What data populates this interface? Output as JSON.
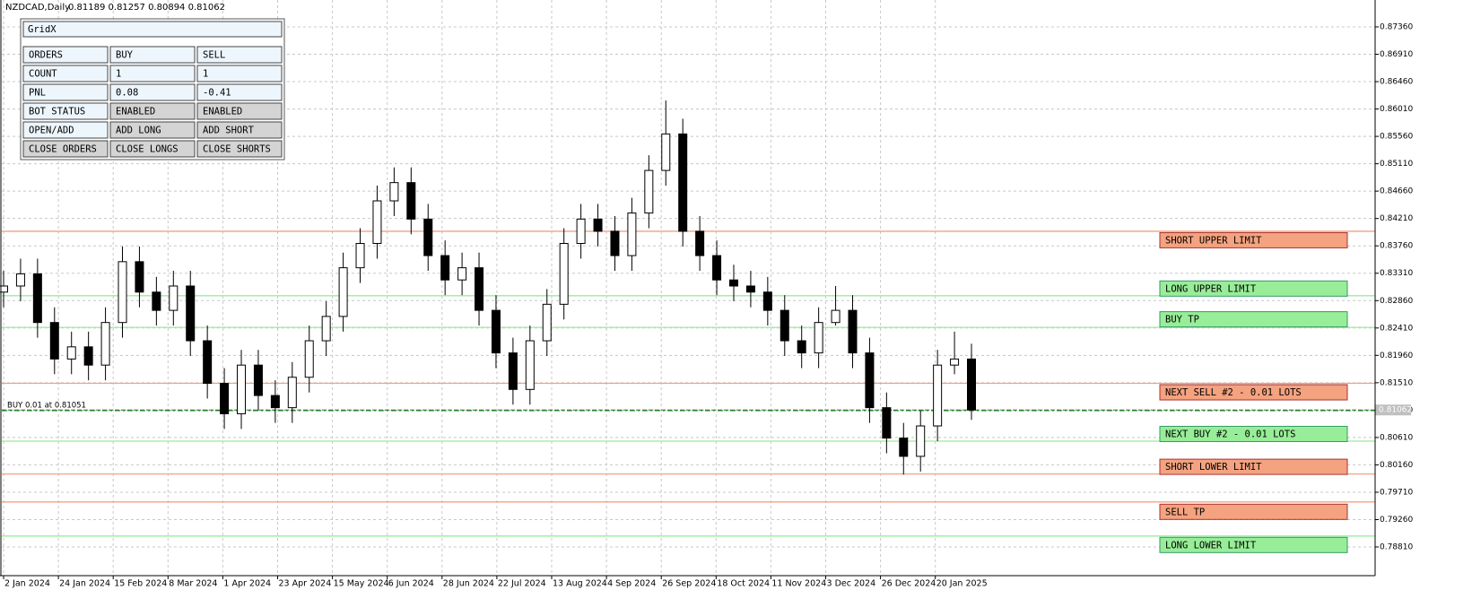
{
  "header": {
    "symbol": "NZDCAD,Daily",
    "ohlc": "0.81189 0.81257 0.80894 0.81062"
  },
  "panel": {
    "title": "GridX",
    "rows": [
      [
        "ORDERS",
        "BUY",
        "SELL"
      ],
      [
        "COUNT",
        "1",
        "1"
      ],
      [
        "PNL",
        "0.08",
        "-0.41"
      ],
      [
        "BOT STATUS",
        "ENABLED",
        "ENABLED"
      ],
      [
        "OPEN/ADD",
        "ADD LONG",
        "ADD SHORT"
      ],
      [
        "CLOSE ORDERS",
        "CLOSE LONGS",
        "CLOSE SHORTS"
      ]
    ]
  },
  "chart_data": {
    "type": "candlestick",
    "x_labels": [
      "2 Jan 2024",
      "24 Jan 2024",
      "15 Feb 2024",
      "8 Mar 2024",
      "1 Apr 2024",
      "23 Apr 2024",
      "15 May 2024",
      "6 Jun 2024",
      "28 Jun 2024",
      "22 Jul 2024",
      "13 Aug 2024",
      "4 Sep 2024",
      "26 Sep 2024",
      "18 Oct 2024",
      "11 Nov 2024",
      "3 Dec 2024",
      "26 Dec 2024",
      "20 Jan 2025"
    ],
    "open": [
      0.83,
      0.831,
      0.833,
      0.825,
      0.819,
      0.821,
      0.818,
      0.825,
      0.835,
      0.83,
      0.827,
      0.831,
      0.822,
      0.815,
      0.81,
      0.818,
      0.813,
      0.811,
      0.816,
      0.822,
      0.826,
      0.834,
      0.838,
      0.845,
      0.848,
      0.842,
      0.836,
      0.832,
      0.834,
      0.827,
      0.82,
      0.814,
      0.822,
      0.828,
      0.838,
      0.842,
      0.84,
      0.836,
      0.843,
      0.85,
      0.856,
      0.84,
      0.836,
      0.832,
      0.831,
      0.83,
      0.827,
      0.822,
      0.82,
      0.825,
      0.827,
      0.82,
      0.811,
      0.806,
      0.803,
      0.808,
      0.818,
      0.819
    ],
    "high": [
      0.8335,
      0.8355,
      0.8355,
      0.8275,
      0.8235,
      0.8235,
      0.8275,
      0.8375,
      0.8375,
      0.8325,
      0.8335,
      0.8335,
      0.8245,
      0.8175,
      0.8205,
      0.8205,
      0.8155,
      0.8185,
      0.8245,
      0.8285,
      0.8365,
      0.8405,
      0.8475,
      0.8505,
      0.8505,
      0.8445,
      0.8385,
      0.8365,
      0.8365,
      0.8295,
      0.8225,
      0.8245,
      0.8305,
      0.8405,
      0.8445,
      0.8445,
      0.8425,
      0.8455,
      0.8525,
      0.8615,
      0.8585,
      0.8425,
      0.8385,
      0.8345,
      0.8335,
      0.8325,
      0.8295,
      0.8245,
      0.8275,
      0.831,
      0.8295,
      0.8225,
      0.8135,
      0.8085,
      0.8105,
      0.8205,
      0.8235,
      0.8215
    ],
    "low": [
      0.8275,
      0.8285,
      0.8225,
      0.8165,
      0.8165,
      0.8155,
      0.8155,
      0.8225,
      0.8275,
      0.8245,
      0.8245,
      0.8195,
      0.8125,
      0.8075,
      0.8075,
      0.8105,
      0.8085,
      0.8085,
      0.8135,
      0.8195,
      0.8235,
      0.8315,
      0.8355,
      0.8425,
      0.8395,
      0.8335,
      0.8295,
      0.8295,
      0.8245,
      0.8175,
      0.8115,
      0.8115,
      0.8195,
      0.8255,
      0.8355,
      0.8375,
      0.8335,
      0.8335,
      0.8405,
      0.8475,
      0.8375,
      0.8335,
      0.8295,
      0.8285,
      0.8275,
      0.8245,
      0.8195,
      0.8175,
      0.8175,
      0.8245,
      0.8175,
      0.8085,
      0.8035,
      0.8,
      0.8005,
      0.8055,
      0.8165,
      0.809
    ],
    "close": [
      0.831,
      0.833,
      0.825,
      0.819,
      0.821,
      0.818,
      0.825,
      0.835,
      0.83,
      0.827,
      0.831,
      0.822,
      0.815,
      0.81,
      0.818,
      0.813,
      0.811,
      0.816,
      0.822,
      0.826,
      0.834,
      0.838,
      0.845,
      0.848,
      0.842,
      0.836,
      0.832,
      0.834,
      0.827,
      0.82,
      0.814,
      0.822,
      0.828,
      0.838,
      0.842,
      0.84,
      0.836,
      0.843,
      0.85,
      0.856,
      0.84,
      0.836,
      0.832,
      0.831,
      0.83,
      0.827,
      0.822,
      0.82,
      0.825,
      0.827,
      0.82,
      0.811,
      0.806,
      0.803,
      0.808,
      0.818,
      0.819,
      0.81062
    ],
    "ylim": [
      0.78368,
      0.87802
    ],
    "yticks": [
      {
        "value": 0.8736,
        "label": "0.87360"
      },
      {
        "value": 0.8691,
        "label": "0.86910"
      },
      {
        "value": 0.8646,
        "label": "0.86460"
      },
      {
        "value": 0.8601,
        "label": "0.86010"
      },
      {
        "value": 0.8556,
        "label": "0.85560"
      },
      {
        "value": 0.8511,
        "label": "0.85110"
      },
      {
        "value": 0.8466,
        "label": "0.84660"
      },
      {
        "value": 0.8421,
        "label": "0.84210"
      },
      {
        "value": 0.8376,
        "label": "0.83760"
      },
      {
        "value": 0.8331,
        "label": "0.83310"
      },
      {
        "value": 0.8286,
        "label": "0.82860"
      },
      {
        "value": 0.8241,
        "label": "0.82410"
      },
      {
        "value": 0.8196,
        "label": "0.81960"
      },
      {
        "value": 0.8151,
        "label": "0.81510"
      },
      {
        "value": 0.8106,
        "label": "0.81060"
      },
      {
        "value": 0.8061,
        "label": "0.80610"
      },
      {
        "value": 0.8016,
        "label": "0.80160"
      },
      {
        "value": 0.7971,
        "label": "0.79710"
      },
      {
        "value": 0.7926,
        "label": "0.79260"
      },
      {
        "value": 0.7881,
        "label": "0.78810"
      }
    ],
    "grid": true,
    "levels": [
      {
        "name": "SHORT UPPER LIMIT",
        "value": 0.84,
        "color": "#f4a27f"
      },
      {
        "name": "LONG UPPER LIMIT",
        "value": 0.8294,
        "color": "#98ee98"
      },
      {
        "name": "BUY TP",
        "value": 0.8242,
        "color": "#98ee98"
      },
      {
        "name": "NEXT SELL #2 - 0.01 LOTS",
        "value": 0.815,
        "color": "#f4a27f"
      },
      {
        "name": "NEXT BUY #2 - 0.01 LOTS",
        "value": 0.8055,
        "color": "#98ee98"
      },
      {
        "name": "SHORT LOWER LIMIT",
        "value": 0.8001,
        "color": "#f4a27f"
      },
      {
        "name": "SELL TP",
        "value": 0.7955,
        "color": "#f4a27f"
      },
      {
        "name": "LONG LOWER LIMIT",
        "value": 0.7899,
        "color": "#98ee98"
      }
    ],
    "position": {
      "label": "BUY 0.01 at 0.81051",
      "value": 0.81051
    },
    "last_price": 0.81062
  }
}
